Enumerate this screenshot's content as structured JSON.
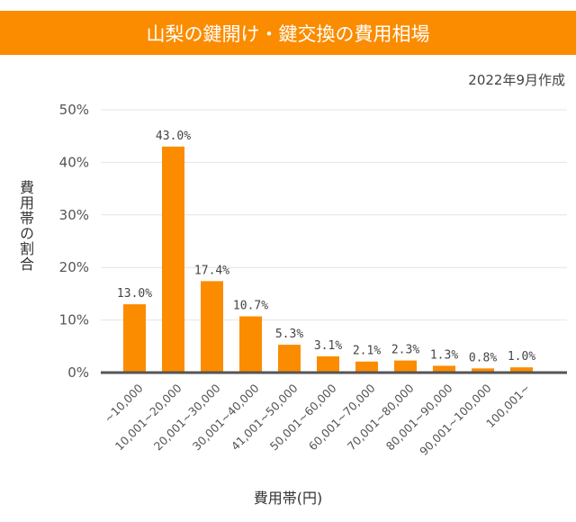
{
  "header": {
    "title": "山梨の鍵開け・鍵交換の費用相場",
    "date": "2022年9月作成"
  },
  "chart_data": {
    "type": "bar",
    "title": "山梨の鍵開け・鍵交換の費用相場",
    "xlabel": "費用帯(円)",
    "ylabel": "費用帯の割合",
    "categories": [
      "~10,000",
      "10,001~20,000",
      "20,001~30,000",
      "30,001~40,000",
      "41,001~50,000",
      "50,001~60,000",
      "60,001~70,000",
      "70,001~80,000",
      "80,001~90,000",
      "90,001~100,000",
      "100,001~"
    ],
    "values": [
      13.0,
      43.0,
      17.4,
      10.7,
      5.3,
      3.1,
      2.1,
      2.3,
      1.3,
      0.8,
      1.0
    ],
    "data_labels": [
      "13.0%",
      "43.0%",
      "17.4%",
      "10.7%",
      "5.3%",
      "3.1%",
      "2.1%",
      "2.3%",
      "1.3%",
      "0.8%",
      "1.0%"
    ],
    "ylim": [
      0,
      50
    ],
    "yticks": [
      "0%",
      "10%",
      "20%",
      "30%",
      "40%",
      "50%"
    ],
    "grid": true,
    "bar_color": "#fb8c00"
  }
}
